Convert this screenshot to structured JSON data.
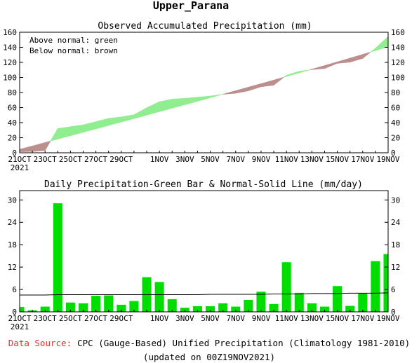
{
  "page": {
    "title": "Upper_Parana",
    "footer": {
      "source_label": "Data Source:",
      "source_text": "CPC (Gauge-Based) Unified Precipitation (Climatology 1981-2010)",
      "updated": "(updated on 00Z19NOV2021)"
    }
  },
  "colors": {
    "above_normal": "#90ee90",
    "below_normal": "#bc8f8f",
    "bars": "#00dd00",
    "source_label": "#e03030"
  },
  "chart_data": [
    {
      "type": "area",
      "title": "Observed Accumulated Precipitation (mm)",
      "legend": [
        "Above normal: green",
        "Below normal: brown"
      ],
      "legend_position": "top-left",
      "grid": false,
      "x_tick_labels": [
        "21OCT",
        "23OCT",
        "25OCT",
        "27OCT",
        "29OCT",
        "1NOV",
        "3NOV",
        "5NOV",
        "7NOV",
        "9NOV",
        "11NOV",
        "13NOV",
        "15NOV",
        "17NOV",
        "19NOV"
      ],
      "x_tick_year": "2021",
      "y_ticks": [
        0,
        20,
        40,
        60,
        80,
        100,
        120,
        140,
        160
      ],
      "ylim": [
        0,
        160
      ],
      "dates": [
        "21OCT",
        "22OCT",
        "23OCT",
        "24OCT",
        "25OCT",
        "26OCT",
        "27OCT",
        "28OCT",
        "29OCT",
        "30OCT",
        "31OCT",
        "1NOV",
        "2NOV",
        "3NOV",
        "4NOV",
        "5NOV",
        "6NOV",
        "7NOV",
        "8NOV",
        "9NOV",
        "10NOV",
        "11NOV",
        "12NOV",
        "13NOV",
        "14NOV",
        "15NOV",
        "16NOV",
        "17NOV",
        "18NOV",
        "19NOV"
      ],
      "series": [
        {
          "name": "Observed",
          "values": [
            1.3,
            1.7,
            3.1,
            32.2,
            34.7,
            37.0,
            41.3,
            45.7,
            47.6,
            50.5,
            59.8,
            67.8,
            71.2,
            72.3,
            73.8,
            75.3,
            77.6,
            79.0,
            82.2,
            87.6,
            89.7,
            103.0,
            108.1,
            110.4,
            111.8,
            118.7,
            120.3,
            125.2,
            138.8,
            154.3
          ]
        },
        {
          "name": "Normal",
          "values": [
            4.5,
            9.0,
            13.6,
            18.1,
            22.6,
            27.2,
            31.7,
            36.3,
            40.8,
            45.4,
            50.0,
            54.6,
            59.2,
            63.8,
            68.4,
            73.0,
            77.7,
            82.4,
            87.1,
            91.8,
            96.5,
            101.3,
            106.1,
            110.9,
            115.8,
            120.7,
            125.6,
            130.6,
            135.6,
            140.7
          ]
        }
      ]
    },
    {
      "type": "bar",
      "title": "Daily Precipitation-Green Bar & Normal-Solid Line (mm/day)",
      "grid": false,
      "x_tick_labels": [
        "21OCT",
        "23OCT",
        "25OCT",
        "27OCT",
        "29OCT",
        "1NOV",
        "3NOV",
        "5NOV",
        "7NOV",
        "9NOV",
        "11NOV",
        "13NOV",
        "15NOV",
        "17NOV",
        "19NOV"
      ],
      "x_tick_year": "2021",
      "y_ticks": [
        0,
        6,
        12,
        18,
        24,
        30
      ],
      "ylim": [
        0,
        32.5
      ],
      "categories": [
        "21OCT",
        "22OCT",
        "23OCT",
        "24OCT",
        "25OCT",
        "26OCT",
        "27OCT",
        "28OCT",
        "29OCT",
        "30OCT",
        "31OCT",
        "1NOV",
        "2NOV",
        "3NOV",
        "4NOV",
        "5NOV",
        "6NOV",
        "7NOV",
        "8NOV",
        "9NOV",
        "10NOV",
        "11NOV",
        "12NOV",
        "13NOV",
        "14NOV",
        "15NOV",
        "16NOV",
        "17NOV",
        "18NOV",
        "19NOV"
      ],
      "series": [
        {
          "name": "Daily Precipitation",
          "values": [
            1.3,
            0.4,
            1.4,
            29.1,
            2.5,
            2.3,
            4.3,
            4.4,
            1.9,
            2.9,
            9.3,
            8.0,
            3.4,
            1.1,
            1.5,
            1.5,
            2.3,
            1.4,
            3.2,
            5.4,
            2.1,
            13.3,
            5.1,
            2.3,
            1.4,
            6.9,
            1.6,
            4.9,
            13.6,
            15.5
          ]
        },
        {
          "name": "Normal",
          "values": [
            4.5,
            4.5,
            4.5,
            4.6,
            4.6,
            4.6,
            4.6,
            4.6,
            4.6,
            4.6,
            4.6,
            4.6,
            4.6,
            4.6,
            4.6,
            4.7,
            4.7,
            4.7,
            4.7,
            4.7,
            4.8,
            4.8,
            4.8,
            4.9,
            4.9,
            4.9,
            5.0,
            5.0,
            5.0,
            5.1
          ]
        }
      ]
    }
  ]
}
